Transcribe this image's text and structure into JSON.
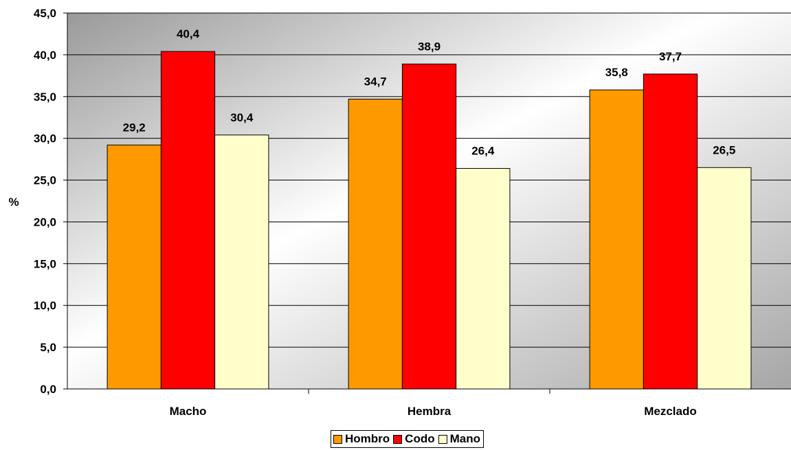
{
  "chart_data": {
    "type": "bar",
    "title": "",
    "xlabel": "",
    "ylabel": "%",
    "ylim": [
      0,
      45
    ],
    "ytick_step": 5,
    "ytick_labels": [
      "0,0",
      "5,0",
      "10,0",
      "15,0",
      "20,0",
      "25,0",
      "30,0",
      "35,0",
      "40,0",
      "45,0"
    ],
    "categories": [
      "Macho",
      "Hembra",
      "Mezclado"
    ],
    "series": [
      {
        "name": "Hombro",
        "color": "#ff9900",
        "values": [
          29.2,
          34.7,
          35.8
        ],
        "labels": [
          "29,2",
          "34,7",
          "35,8"
        ]
      },
      {
        "name": "Codo",
        "color": "#ff0000",
        "values": [
          40.4,
          38.9,
          37.7
        ],
        "labels": [
          "40,4",
          "38,9",
          "37,7"
        ]
      },
      {
        "name": "Mano",
        "color": "#ffffcc",
        "values": [
          30.4,
          26.4,
          26.5
        ],
        "labels": [
          "30,4",
          "26,4",
          "26,5"
        ]
      }
    ],
    "grid": true,
    "legend_position": "bottom"
  }
}
